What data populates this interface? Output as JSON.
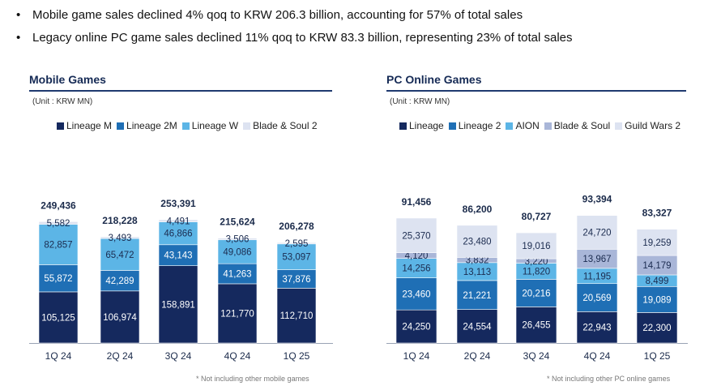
{
  "bullets": [
    "Mobile game sales declined 4% qoq to KRW 206.3 billion, accounting for 57% of total sales",
    "Legacy online PC game sales declined 11% qoq to KRW 83.3 billion, representing 23% of total sales"
  ],
  "bullet_symbol": "•",
  "chart_data": [
    {
      "type": "bar",
      "stacked": true,
      "title": "Mobile Games",
      "unit": "(Unit : KRW MN)",
      "footnote": "* Not including other mobile games",
      "categories": [
        "1Q 24",
        "2Q 24",
        "3Q 24",
        "4Q 24",
        "1Q 25"
      ],
      "totals": [
        "249,436",
        "218,228",
        "253,391",
        "215,624",
        "206,278"
      ],
      "series": [
        {
          "name": "Lineage M",
          "color": "#15295e",
          "text_color": "#ffffff",
          "values": [
            105125,
            106974,
            158891,
            121770,
            112710
          ],
          "labels": [
            "105,125",
            "106,974",
            "158,891",
            "121,770",
            "112,710"
          ]
        },
        {
          "name": "Lineage 2M",
          "color": "#1f6fb5",
          "text_color": "#ffffff",
          "values": [
            55872,
            42289,
            43143,
            41263,
            37876
          ],
          "labels": [
            "55,872",
            "42,289",
            "43,143",
            "41,263",
            "37,876"
          ]
        },
        {
          "name": "Lineage W",
          "color": "#5cb5e6",
          "text_color": "#1b2b4f",
          "values": [
            82857,
            65472,
            46866,
            49086,
            53097
          ],
          "labels": [
            "82,857",
            "65,472",
            "46,866",
            "49,086",
            "53,097"
          ]
        },
        {
          "name": "Blade & Soul 2",
          "color": "#dde3f1",
          "text_color": "#1b2b4f",
          "values": [
            5582,
            3493,
            4491,
            3506,
            2595
          ],
          "labels": [
            "5,582",
            "3,493",
            "4,491",
            "3,506",
            "2,595"
          ]
        }
      ]
    },
    {
      "type": "bar",
      "stacked": true,
      "title": "PC Online Games",
      "unit": "(Unit : KRW MN)",
      "footnote": "* Not including other PC online games",
      "categories": [
        "1Q 24",
        "2Q 24",
        "3Q 24",
        "4Q 24",
        "1Q 25"
      ],
      "totals": [
        "91,456",
        "86,200",
        "80,727",
        "93,394",
        "83,327"
      ],
      "series": [
        {
          "name": "Lineage",
          "color": "#15295e",
          "text_color": "#ffffff",
          "values": [
            24250,
            24554,
            26455,
            22943,
            22300
          ],
          "labels": [
            "24,250",
            "24,554",
            "26,455",
            "22,943",
            "22,300"
          ]
        },
        {
          "name": "Lineage 2",
          "color": "#1f6fb5",
          "text_color": "#ffffff",
          "values": [
            23460,
            21221,
            20216,
            20569,
            19089
          ],
          "labels": [
            "23,460",
            "21,221",
            "20,216",
            "20,569",
            "19,089"
          ]
        },
        {
          "name": "AION",
          "color": "#5cb5e6",
          "text_color": "#1b2b4f",
          "values": [
            14256,
            13113,
            11820,
            11195,
            8499
          ],
          "labels": [
            "14,256",
            "13,113",
            "11,820",
            "11,195",
            "8,499"
          ]
        },
        {
          "name": "Blade & Soul",
          "color": "#a9b6d8",
          "text_color": "#1b2b4f",
          "values": [
            4120,
            3832,
            3220,
            13967,
            14179
          ],
          "labels": [
            "4,120",
            "3,832",
            "3,220",
            "13,967",
            "14,179"
          ]
        },
        {
          "name": "Guild Wars 2",
          "color": "#dde3f1",
          "text_color": "#1b2b4f",
          "values": [
            25370,
            23480,
            19016,
            24720,
            19259
          ],
          "labels": [
            "25,370",
            "23,480",
            "19,016",
            "24,720",
            "19,259"
          ]
        }
      ]
    }
  ]
}
